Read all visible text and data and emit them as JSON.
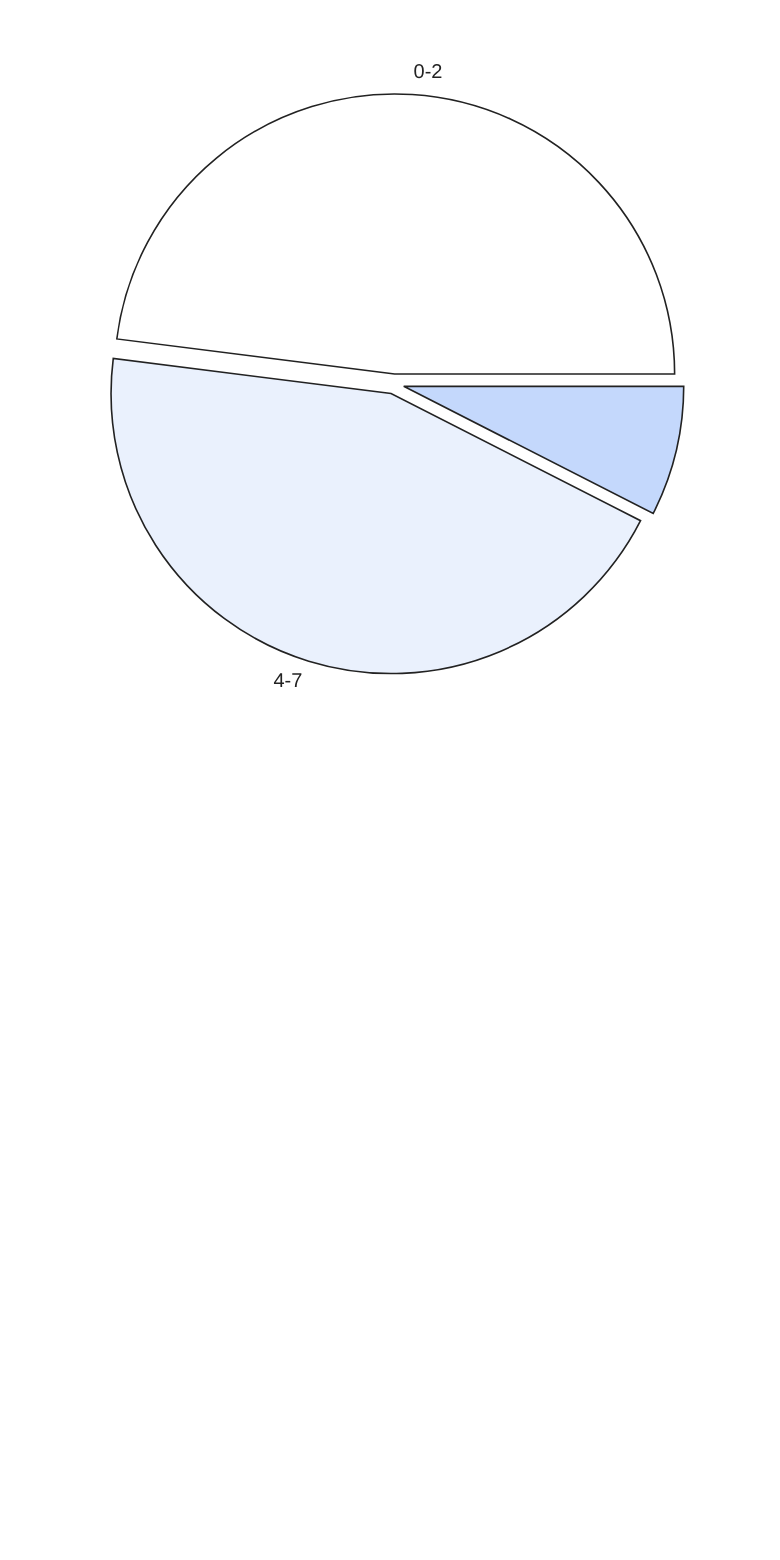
{
  "chart_data": {
    "type": "pie",
    "categories": [
      "0-2",
      null,
      "4-7"
    ],
    "values": [
      48,
      7.5,
      44.5
    ],
    "colors": [
      "#ffffff",
      "#c4d8fc",
      "#eaf1fd"
    ]
  }
}
